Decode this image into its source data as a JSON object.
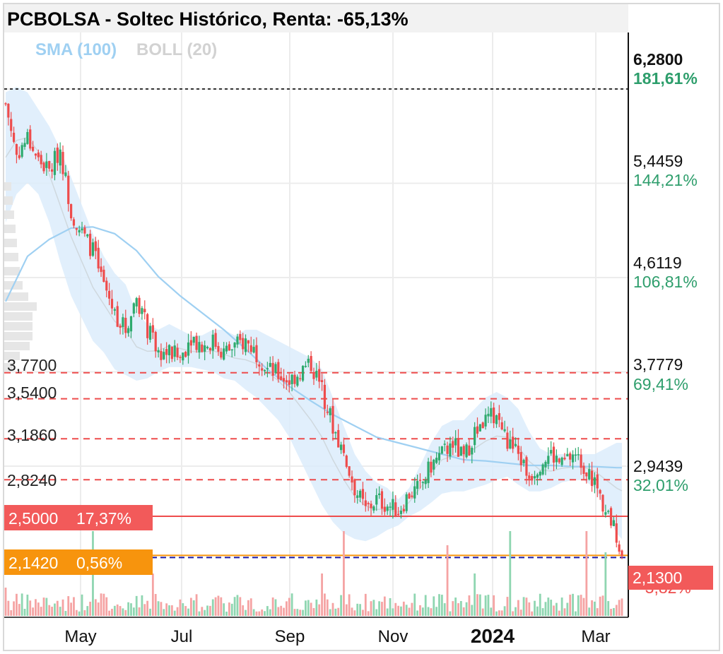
{
  "title": "PCBOLSA - Soltec Histórico, Renta: -65,13%",
  "legend": {
    "sma": "SMA (100)",
    "boll": "BOLL (20)",
    "sma_color": "#9fd0f2",
    "boll_color": "#d2d2d2"
  },
  "colors": {
    "up": "#2eaa6e",
    "down": "#ee4c4c",
    "band_fill": "#dcecfb",
    "level_line": "#ee4c4c",
    "level_2_5_tag": "#f25a5a",
    "level_2_142_tag": "#f7940d",
    "last_tag": "#f25a5a",
    "avg_line": "#1a1aa8"
  },
  "price_axis": {
    "ticks": [
      {
        "price": "6,2800",
        "pct": "181,61%",
        "bold": true
      },
      {
        "price": "5,4459",
        "pct": "144,21%",
        "bold": false
      },
      {
        "price": "4,6119",
        "pct": "106,81%",
        "bold": false
      },
      {
        "price": "3,7779",
        "pct": "69,41%",
        "bold": false
      },
      {
        "price": "2,9439",
        "pct": "32,01%",
        "bold": false
      }
    ],
    "last_price": "2,1300",
    "last_pct": "-3,82%"
  },
  "levels": [
    {
      "price": "3,7700"
    },
    {
      "price": "3,5400"
    },
    {
      "price": "3,1860"
    },
    {
      "price": "2,8240"
    }
  ],
  "tags": {
    "level_2_5": {
      "price": "2,5000",
      "pct": "17,37%"
    },
    "level_2_142": {
      "price": "2,1420",
      "pct": "0,56%"
    }
  },
  "chart_data": {
    "type": "candlestick",
    "title": "PCBOLSA - Soltec Histórico, Renta: -65,13%",
    "x_ticks": [
      "May",
      "Jul",
      "Sep",
      "Nov",
      "2024",
      "Mar"
    ],
    "y_ticks": [
      6.28,
      5.4459,
      4.6119,
      3.7779,
      2.9439
    ],
    "ylim": [
      1.95,
      6.4
    ],
    "price_anchor": {
      "price": 2.13,
      "pct": -3.82
    },
    "series": [
      {
        "name": "Soltec",
        "type": "close",
        "values": [
          [
            0,
            6.15
          ],
          [
            4,
            5.7
          ],
          [
            8,
            5.85
          ],
          [
            12,
            5.65
          ],
          [
            16,
            5.55
          ],
          [
            20,
            5.75
          ],
          [
            24,
            5.2
          ],
          [
            28,
            5.0
          ],
          [
            32,
            4.85
          ],
          [
            36,
            4.55
          ],
          [
            40,
            4.3
          ],
          [
            44,
            4.15
          ],
          [
            48,
            4.45
          ],
          [
            52,
            4.15
          ],
          [
            56,
            3.95
          ],
          [
            60,
            3.95
          ],
          [
            64,
            3.9
          ],
          [
            68,
            4.1
          ],
          [
            72,
            4.0
          ],
          [
            76,
            4.05
          ],
          [
            80,
            3.95
          ],
          [
            84,
            4.0
          ],
          [
            88,
            4.05
          ],
          [
            92,
            3.95
          ],
          [
            96,
            3.8
          ],
          [
            100,
            3.75
          ],
          [
            104,
            3.7
          ],
          [
            108,
            3.78
          ],
          [
            112,
            3.85
          ],
          [
            116,
            3.62
          ],
          [
            120,
            3.3
          ],
          [
            124,
            3.05
          ],
          [
            128,
            2.75
          ],
          [
            132,
            2.55
          ],
          [
            136,
            2.65
          ],
          [
            140,
            2.6
          ],
          [
            144,
            2.55
          ],
          [
            148,
            2.7
          ],
          [
            152,
            2.75
          ],
          [
            156,
            2.95
          ],
          [
            160,
            3.05
          ],
          [
            164,
            3.15
          ],
          [
            168,
            3.0
          ],
          [
            172,
            3.25
          ],
          [
            176,
            3.35
          ],
          [
            180,
            3.4
          ],
          [
            184,
            3.15
          ],
          [
            188,
            3.05
          ],
          [
            192,
            2.85
          ],
          [
            196,
            2.98
          ],
          [
            200,
            3.05
          ],
          [
            204,
            2.95
          ],
          [
            208,
            3.05
          ],
          [
            212,
            2.95
          ],
          [
            216,
            2.8
          ],
          [
            220,
            2.55
          ],
          [
            224,
            2.35
          ],
          [
            226,
            2.13
          ]
        ]
      },
      {
        "name": "SMA (100)",
        "type": "line",
        "values": [
          [
            0,
            4.4
          ],
          [
            8,
            4.8
          ],
          [
            16,
            4.95
          ],
          [
            24,
            5.05
          ],
          [
            32,
            5.06
          ],
          [
            40,
            5.0
          ],
          [
            48,
            4.85
          ],
          [
            56,
            4.62
          ],
          [
            64,
            4.45
          ],
          [
            72,
            4.3
          ],
          [
            80,
            4.15
          ],
          [
            88,
            3.98
          ],
          [
            96,
            3.8
          ],
          [
            104,
            3.65
          ],
          [
            112,
            3.52
          ],
          [
            120,
            3.4
          ],
          [
            128,
            3.3
          ],
          [
            136,
            3.2
          ],
          [
            144,
            3.15
          ],
          [
            152,
            3.1
          ],
          [
            160,
            3.05
          ],
          [
            168,
            3.0
          ],
          [
            176,
            2.99
          ],
          [
            184,
            2.97
          ],
          [
            192,
            2.95
          ],
          [
            200,
            2.95
          ],
          [
            208,
            2.94
          ],
          [
            216,
            2.94
          ],
          [
            224,
            2.93
          ],
          [
            226,
            2.93
          ]
        ]
      },
      {
        "name": "BOLL (20) upper",
        "type": "line",
        "values": [
          [
            0,
            6.25
          ],
          [
            4,
            6.3
          ],
          [
            8,
            6.25
          ],
          [
            12,
            6.1
          ],
          [
            16,
            5.95
          ],
          [
            20,
            5.75
          ],
          [
            24,
            5.5
          ],
          [
            28,
            5.25
          ],
          [
            32,
            5.0
          ],
          [
            36,
            4.8
          ],
          [
            40,
            4.65
          ],
          [
            44,
            4.55
          ],
          [
            48,
            4.3
          ],
          [
            52,
            4.2
          ],
          [
            56,
            4.15
          ],
          [
            60,
            4.2
          ],
          [
            64,
            4.15
          ],
          [
            68,
            4.1
          ],
          [
            72,
            4.1
          ],
          [
            76,
            4.15
          ],
          [
            80,
            4.15
          ],
          [
            84,
            4.1
          ],
          [
            88,
            4.15
          ],
          [
            92,
            4.15
          ],
          [
            96,
            4.1
          ],
          [
            100,
            4.05
          ],
          [
            104,
            4.0
          ],
          [
            108,
            3.95
          ],
          [
            112,
            3.9
          ],
          [
            116,
            3.8
          ],
          [
            120,
            3.55
          ],
          [
            124,
            3.3
          ],
          [
            128,
            3.05
          ],
          [
            132,
            2.9
          ],
          [
            136,
            2.8
          ],
          [
            140,
            2.75
          ],
          [
            144,
            2.65
          ],
          [
            148,
            2.75
          ],
          [
            152,
            2.95
          ],
          [
            156,
            3.15
          ],
          [
            160,
            3.3
          ],
          [
            164,
            3.35
          ],
          [
            168,
            3.35
          ],
          [
            172,
            3.45
          ],
          [
            176,
            3.55
          ],
          [
            180,
            3.6
          ],
          [
            184,
            3.55
          ],
          [
            188,
            3.45
          ],
          [
            192,
            3.25
          ],
          [
            196,
            3.1
          ],
          [
            200,
            3.05
          ],
          [
            204,
            3.05
          ],
          [
            208,
            3.05
          ],
          [
            212,
            3.05
          ],
          [
            216,
            3.05
          ],
          [
            220,
            3.1
          ],
          [
            224,
            3.15
          ],
          [
            226,
            3.15
          ]
        ]
      },
      {
        "name": "BOLL (20) lower",
        "type": "line",
        "values": [
          [
            0,
            5.1
          ],
          [
            4,
            5.35
          ],
          [
            8,
            5.45
          ],
          [
            12,
            5.35
          ],
          [
            16,
            5.1
          ],
          [
            20,
            4.75
          ],
          [
            24,
            4.45
          ],
          [
            28,
            4.25
          ],
          [
            32,
            4.05
          ],
          [
            36,
            3.95
          ],
          [
            40,
            3.8
          ],
          [
            44,
            3.75
          ],
          [
            48,
            3.7
          ],
          [
            52,
            3.72
          ],
          [
            56,
            3.78
          ],
          [
            60,
            3.82
          ],
          [
            64,
            3.82
          ],
          [
            68,
            3.82
          ],
          [
            72,
            3.8
          ],
          [
            76,
            3.78
          ],
          [
            80,
            3.72
          ],
          [
            84,
            3.7
          ],
          [
            88,
            3.62
          ],
          [
            92,
            3.55
          ],
          [
            96,
            3.45
          ],
          [
            100,
            3.35
          ],
          [
            104,
            3.2
          ],
          [
            108,
            3.0
          ],
          [
            112,
            2.8
          ],
          [
            116,
            2.6
          ],
          [
            120,
            2.45
          ],
          [
            124,
            2.35
          ],
          [
            128,
            2.3
          ],
          [
            132,
            2.28
          ],
          [
            136,
            2.32
          ],
          [
            140,
            2.38
          ],
          [
            144,
            2.42
          ],
          [
            148,
            2.5
          ],
          [
            152,
            2.55
          ],
          [
            156,
            2.62
          ],
          [
            160,
            2.7
          ],
          [
            164,
            2.72
          ],
          [
            168,
            2.72
          ],
          [
            172,
            2.75
          ],
          [
            176,
            2.78
          ],
          [
            180,
            2.82
          ],
          [
            184,
            2.85
          ],
          [
            188,
            2.78
          ],
          [
            192,
            2.72
          ],
          [
            196,
            2.72
          ],
          [
            200,
            2.75
          ],
          [
            204,
            2.8
          ],
          [
            208,
            2.82
          ],
          [
            212,
            2.82
          ],
          [
            216,
            2.75
          ],
          [
            220,
            2.55
          ],
          [
            224,
            2.35
          ],
          [
            226,
            2.3
          ]
        ]
      }
    ],
    "reference_lines": [
      {
        "price": 3.77,
        "style": "dashed"
      },
      {
        "price": 3.54,
        "style": "dashed"
      },
      {
        "price": 3.186,
        "style": "dashed"
      },
      {
        "price": 2.824,
        "style": "dashed"
      },
      {
        "price": 2.5,
        "style": "solid"
      },
      {
        "price": 2.142,
        "style": "solid"
      },
      {
        "price": 6.28,
        "style": "dotted"
      }
    ],
    "legend_position": "top-left",
    "grid": true
  }
}
